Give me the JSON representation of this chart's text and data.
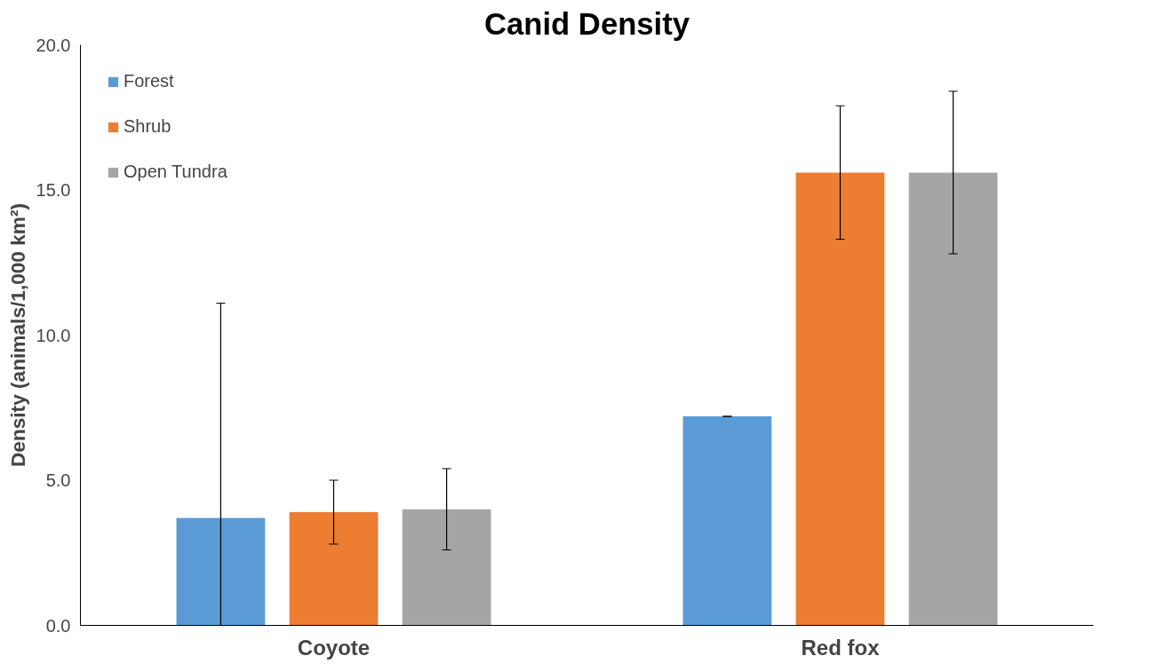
{
  "chart_data": {
    "type": "bar",
    "title": "Canid Density",
    "ylabel": "Density (animals/1,000 km²)",
    "categories": [
      "Coyote",
      "Red fox"
    ],
    "series": [
      {
        "name": "Forest",
        "color": "#5b9bd5",
        "values": [
          3.7,
          7.2
        ],
        "errors": [
          [
            0,
            11.1
          ],
          [
            7.2,
            7.2
          ]
        ]
      },
      {
        "name": "Shrub",
        "color": "#ed7d31",
        "values": [
          3.9,
          15.6
        ],
        "errors": [
          [
            2.8,
            5.0
          ],
          [
            13.3,
            17.9
          ]
        ]
      },
      {
        "name": "Open Tundra",
        "color": "#a5a5a5",
        "values": [
          4.0,
          15.6
        ],
        "errors": [
          [
            2.6,
            5.4
          ],
          [
            12.8,
            18.4
          ]
        ]
      }
    ],
    "ylim": [
      0,
      20
    ],
    "yticks": [
      {
        "value": 0,
        "label": "0.0"
      },
      {
        "value": 5,
        "label": "5.0"
      },
      {
        "value": 10,
        "label": "10.0"
      },
      {
        "value": 15,
        "label": "15.0"
      },
      {
        "value": 20,
        "label": "20.0"
      }
    ],
    "grid": false,
    "legend": "top left"
  }
}
